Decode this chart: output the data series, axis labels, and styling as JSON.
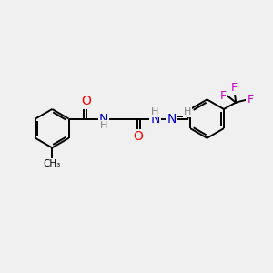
{
  "background_color": "#f0f0f0",
  "bond_color": "#000000",
  "atom_colors": {
    "O": "#ff0000",
    "N": "#0000cc",
    "F": "#cc00cc",
    "H": "#808080",
    "C": "#000000"
  },
  "font_size_main": 9,
  "font_size_H": 8,
  "figsize": [
    3.0,
    3.0
  ],
  "dpi": 100
}
